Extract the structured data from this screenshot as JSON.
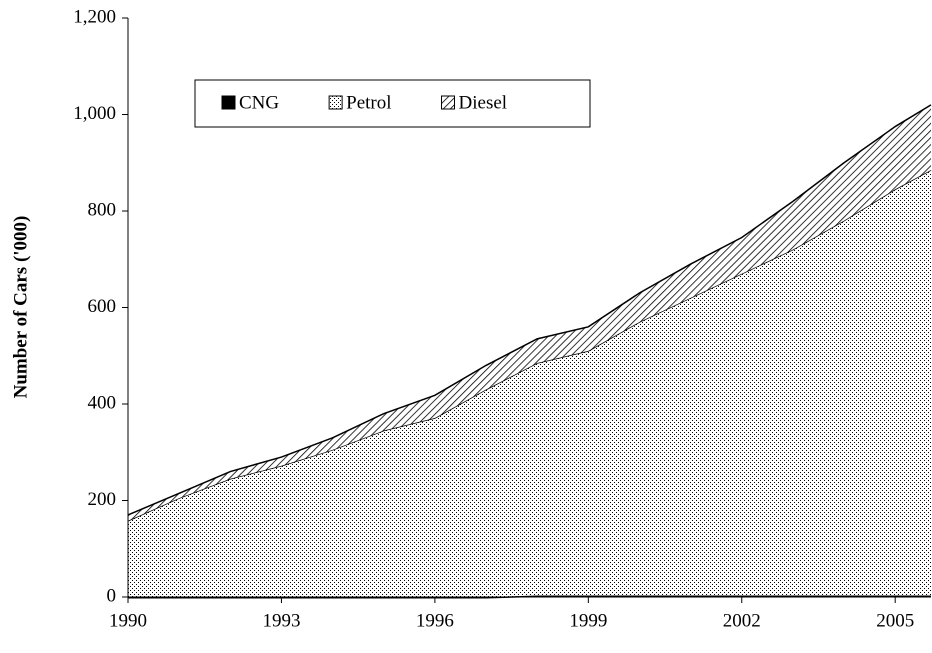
{
  "chart_data": {
    "type": "stacked-area",
    "y_label": "Number of Cars ('000)",
    "x": [
      1990,
      1991,
      1992,
      1993,
      1994,
      1995,
      1996,
      1997,
      1998,
      1999,
      2000,
      2001,
      2002,
      2003,
      2004,
      2005,
      2005.7
    ],
    "series": [
      {
        "name": "CNG",
        "color": "#000000",
        "pattern": "solid",
        "values": [
          0,
          0,
          0,
          0,
          0,
          0,
          0,
          0,
          3,
          3,
          3,
          3,
          3,
          3,
          3,
          3,
          3
        ]
      },
      {
        "name": "Petrol",
        "color": "#000000",
        "pattern": "dots",
        "values": [
          158,
          205,
          245,
          272,
          305,
          345,
          371,
          430,
          482,
          507,
          567,
          617,
          667,
          717,
          777,
          842,
          882
        ]
      },
      {
        "name": "Diesel",
        "color": "#000000",
        "pattern": "hatch",
        "values": [
          12,
          10,
          15,
          18,
          25,
          35,
          47,
          50,
          50,
          50,
          60,
          70,
          75,
          100,
          120,
          130,
          135
        ]
      }
    ],
    "xlim": [
      1990,
      2005.7
    ],
    "xticks": [
      1990,
      1993,
      1996,
      1999,
      2002,
      2005
    ],
    "ylim": [
      0,
      1200
    ],
    "yticks": [
      0,
      200,
      400,
      600,
      800,
      {
        "value": 1000,
        "label": "1,000"
      },
      {
        "value": 1200,
        "label": "1,200"
      }
    ],
    "legend": "top-left"
  }
}
